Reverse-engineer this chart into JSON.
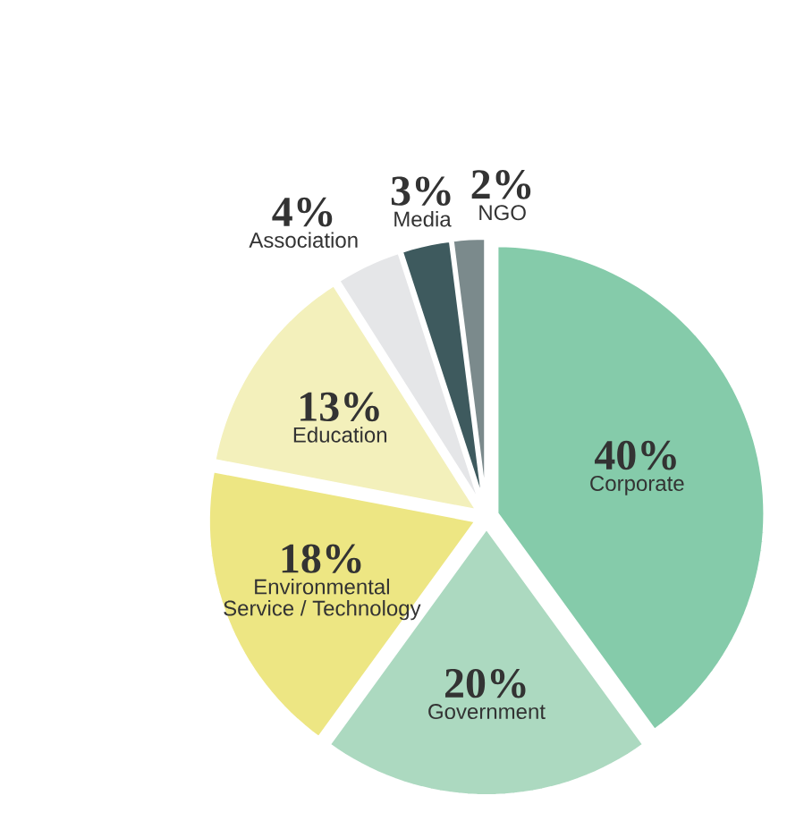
{
  "chart_data": {
    "type": "pie",
    "categories": [
      "Corporate",
      "Government",
      "Environmental Service / Technology",
      "Education",
      "Association",
      "Media",
      "NGO"
    ],
    "values": [
      40,
      20,
      18,
      13,
      4,
      3,
      2
    ],
    "value_labels": [
      "40%",
      "20%",
      "18%",
      "13%",
      "4%",
      "3%",
      "2%"
    ],
    "colors": [
      "#85cbaa",
      "#acd9c0",
      "#ede683",
      "#f3f0bb",
      "#e5e6e8",
      "#3e5a5e",
      "#7b8a8c"
    ]
  }
}
